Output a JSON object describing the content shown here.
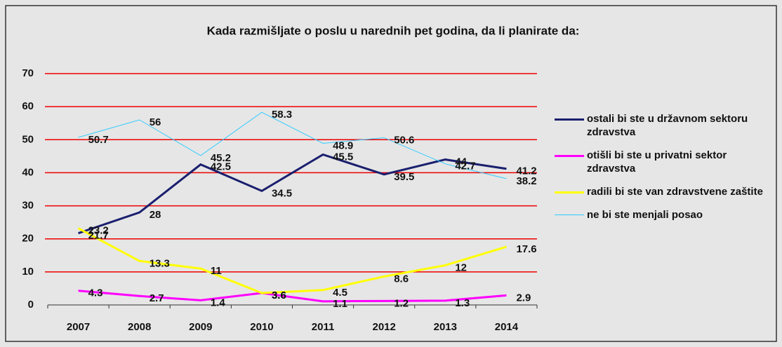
{
  "chart_data": {
    "type": "line",
    "title": "Kada razmišljate o poslu u narednih pet godina, da li planirate da:",
    "categories": [
      "2007",
      "2008",
      "2009",
      "2010",
      "2011",
      "2012",
      "2013",
      "2014"
    ],
    "series": [
      {
        "name": "ostali bi ste u državnom sektoru zdravstva",
        "color": "#1a1f6e",
        "values": [
          21.7,
          28,
          42.5,
          34.5,
          45.5,
          39.5,
          44,
          41.2
        ]
      },
      {
        "name": "otišli bi ste u privatni sektor zdravstva",
        "color": "#ff00ff",
        "values": [
          4.3,
          2.7,
          1.4,
          3.6,
          1.1,
          1.2,
          1.3,
          2.9
        ]
      },
      {
        "name": "radili bi ste van zdravstvene zaštite",
        "color": "#ffff00",
        "values": [
          23.2,
          13.3,
          11,
          3.6,
          4.5,
          8.6,
          12,
          17.6
        ]
      },
      {
        "name": "ne bi ste menjali posao",
        "color": "#33ccff",
        "values": [
          50.7,
          56,
          45.2,
          58.3,
          48.9,
          50.6,
          42.7,
          38.2
        ]
      }
    ],
    "ylim": [
      0,
      70
    ],
    "yticks": [
      0,
      10,
      20,
      30,
      40,
      50,
      60,
      70
    ],
    "grid": true,
    "grid_color": "#ee0000"
  }
}
